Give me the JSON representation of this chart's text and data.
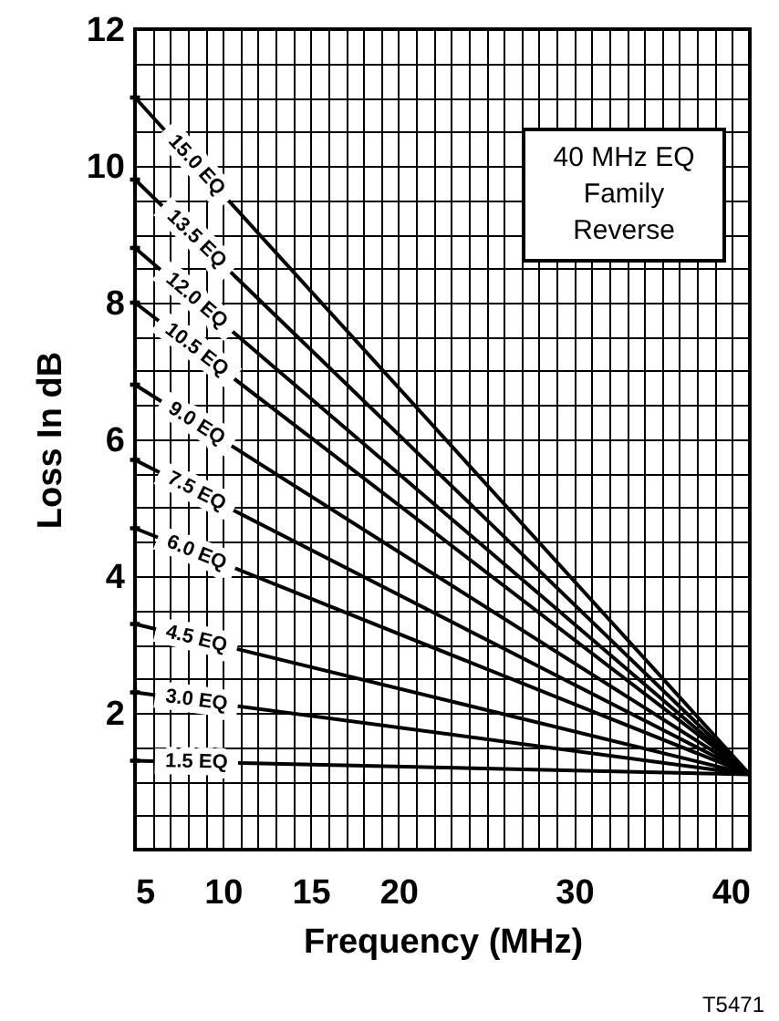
{
  "chart_data": {
    "type": "line",
    "xlabel": "Frequency (MHz)",
    "ylabel": "Loss In dB",
    "x": [
      5,
      40
    ],
    "xlim": [
      5,
      40
    ],
    "xticks": [
      5,
      {
        "value": 6,
        "label": null
      },
      {
        "value": 7,
        "label": null
      },
      {
        "value": 8,
        "label": null
      },
      {
        "value": 9,
        "label": null
      },
      10,
      {
        "value": 11,
        "label": null
      },
      {
        "value": 12,
        "label": null
      },
      {
        "value": 13,
        "label": null
      },
      {
        "value": 14,
        "label": null
      },
      15,
      {
        "value": 16,
        "label": null
      },
      {
        "value": 17,
        "label": null
      },
      {
        "value": 18,
        "label": null
      },
      {
        "value": 19,
        "label": null
      },
      20,
      {
        "value": 21,
        "label": null
      },
      {
        "value": 22,
        "label": null
      },
      {
        "value": 23,
        "label": null
      },
      {
        "value": 24,
        "label": null
      },
      {
        "value": 25,
        "label": null
      },
      {
        "value": 26,
        "label": null
      },
      {
        "value": 27,
        "label": null
      },
      {
        "value": 28,
        "label": null
      },
      {
        "value": 29,
        "label": null
      },
      30,
      {
        "value": 31,
        "label": null
      },
      {
        "value": 32,
        "label": null
      },
      {
        "value": 33,
        "label": null
      },
      {
        "value": 34,
        "label": null
      },
      {
        "value": 35,
        "label": null
      },
      {
        "value": 36,
        "label": null
      },
      {
        "value": 37,
        "label": null
      },
      {
        "value": 38,
        "label": null
      },
      {
        "value": 39,
        "label": null
      },
      40
    ],
    "ylim": [
      0,
      12
    ],
    "yticks": [
      {
        "value": 0.5,
        "label": null
      },
      {
        "value": 1,
        "label": null
      },
      {
        "value": 1.5,
        "label": null
      },
      2,
      {
        "value": 2.5,
        "label": null
      },
      {
        "value": 3,
        "label": null
      },
      {
        "value": 3.5,
        "label": null
      },
      4,
      {
        "value": 4.5,
        "label": null
      },
      {
        "value": 5,
        "label": null
      },
      {
        "value": 5.5,
        "label": null
      },
      6,
      {
        "value": 6.5,
        "label": null
      },
      {
        "value": 7,
        "label": null
      },
      {
        "value": 7.5,
        "label": null
      },
      8,
      {
        "value": 8.5,
        "label": null
      },
      {
        "value": 9,
        "label": null
      },
      {
        "value": 9.5,
        "label": null
      },
      10,
      {
        "value": 10.5,
        "label": null
      },
      {
        "value": 11,
        "label": null
      },
      {
        "value": 11.5,
        "label": null
      },
      12
    ],
    "grid": true,
    "legend": false,
    "line_style": "solid",
    "series": [
      {
        "name": "15.0 EQ",
        "color": "#000000",
        "values": [
          11.0,
          1.1
        ]
      },
      {
        "name": "13.5 EQ",
        "color": "#000000",
        "values": [
          9.8,
          1.1
        ]
      },
      {
        "name": "12.0 EQ",
        "color": "#000000",
        "values": [
          8.8,
          1.1
        ]
      },
      {
        "name": "10.5 EQ",
        "color": "#000000",
        "values": [
          8.0,
          1.1
        ]
      },
      {
        "name": "9.0 EQ",
        "color": "#000000",
        "values": [
          6.8,
          1.1
        ]
      },
      {
        "name": "7.5 EQ",
        "color": "#000000",
        "values": [
          5.7,
          1.1
        ]
      },
      {
        "name": "6.0 EQ",
        "color": "#000000",
        "values": [
          4.7,
          1.1
        ]
      },
      {
        "name": "4.5 EQ",
        "color": "#000000",
        "values": [
          3.3,
          1.1
        ]
      },
      {
        "name": "3.0 EQ",
        "color": "#000000",
        "values": [
          2.3,
          1.1
        ]
      },
      {
        "name": "1.5 EQ",
        "color": "#000000",
        "values": [
          1.3,
          1.1
        ]
      }
    ],
    "annotations": [
      "40 MHz EQ\nFamily\nReverse",
      "T5471"
    ]
  }
}
